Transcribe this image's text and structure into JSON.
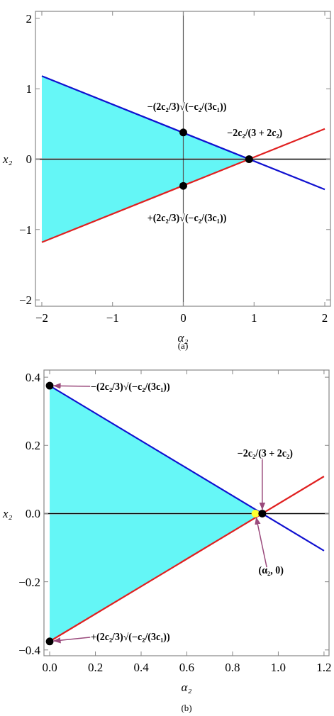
{
  "chart_data": [
    {
      "type": "line",
      "xlabel": "α₂",
      "ylabel": "x₂",
      "xlim": [
        -2.09,
        2.08
      ],
      "ylim": [
        -2.09,
        2.1
      ],
      "xticks": [
        {
          "value": -2,
          "label": "−2"
        },
        {
          "value": -1,
          "label": "−1"
        },
        0,
        1,
        2
      ],
      "yticks": [
        {
          "value": -2,
          "label": "−2"
        },
        {
          "value": -1,
          "label": "−1"
        },
        0,
        1,
        2
      ],
      "ref_lines": [
        {
          "axis": "x",
          "value": 0,
          "color": "#555555"
        },
        {
          "axis": "y",
          "value": 0,
          "color": "#000000"
        }
      ],
      "series": [
        {
          "type": "area",
          "color": "#66f7f7",
          "x": [
            -2,
            0.93
          ],
          "values": [
            1.18,
            0
          ]
        },
        {
          "type": "area",
          "color": "#64f6f6",
          "x": [
            -2,
            0.93
          ],
          "values": [
            -1.18,
            0
          ]
        },
        {
          "type": "line",
          "color": "#1010d0",
          "x": [
            -2,
            2
          ],
          "values": [
            1.18,
            -0.43
          ]
        },
        {
          "type": "line",
          "color": "#e02020",
          "x": [
            -2,
            2
          ],
          "values": [
            -1.18,
            0.43
          ]
        },
        {
          "type": "scatter",
          "color": "#000000",
          "marker": "circle",
          "x": [
            0,
            0,
            0.93
          ],
          "values": [
            0.38,
            -0.38,
            0
          ]
        }
      ],
      "annotations": [
        {
          "text": "−(2c₂/3)√(−c₂/(3c₁))",
          "x": 0,
          "y": 0.38
        },
        {
          "text": "−2c₂/(3 + 2c₂)",
          "x": 0.93,
          "y": 0
        },
        {
          "text": "+(2c₂/3)√(−c₂/(3c₁))",
          "x": 0,
          "y": -0.38
        },
        "(a)"
      ]
    },
    {
      "type": "line",
      "xlabel": "α₂",
      "ylabel": "x₂",
      "xlim": [
        -0.025,
        1.222
      ],
      "ylim": [
        -0.417,
        0.421
      ],
      "xticks": [
        {
          "value": 0,
          "label": "0.0"
        },
        {
          "value": 0.2,
          "label": "0.2"
        },
        {
          "value": 0.4,
          "label": "0.4"
        },
        {
          "value": 0.6,
          "label": "0.6"
        },
        {
          "value": 0.8,
          "label": "0.8"
        },
        {
          "value": 1,
          "label": "1.0"
        },
        {
          "value": 1.2,
          "label": "1.2"
        }
      ],
      "yticks": [
        {
          "value": -0.4,
          "label": "−0.4"
        },
        {
          "value": -0.2,
          "label": "−0.2"
        },
        {
          "value": 0,
          "label": "0.0"
        },
        {
          "value": 0.2,
          "label": "0.2"
        },
        {
          "value": 0.4,
          "label": "0.4"
        }
      ],
      "ref_lines": [
        {
          "axis": "y",
          "value": 0,
          "color": "#000000"
        }
      ],
      "series": [
        {
          "type": "area",
          "color": "#66f7f7",
          "x": [
            0,
            0.93
          ],
          "values": [
            0.375,
            0
          ]
        },
        {
          "type": "area",
          "color": "#64f6f6",
          "x": [
            0,
            0.93
          ],
          "values": [
            -0.375,
            0
          ]
        },
        {
          "type": "line",
          "color": "#1010d0",
          "x": [
            0,
            1.2
          ],
          "values": [
            0.375,
            -0.109
          ]
        },
        {
          "type": "line",
          "color": "#e02020",
          "x": [
            0,
            1.2
          ],
          "values": [
            -0.375,
            0.109
          ]
        },
        {
          "type": "scatter",
          "color": "#ffff30",
          "marker": "circle",
          "x": [
            0.9
          ],
          "values": [
            0
          ]
        },
        {
          "type": "scatter",
          "color": "#000000",
          "marker": "circle",
          "x": [
            0,
            0,
            0.93
          ],
          "values": [
            0.375,
            -0.375,
            0
          ]
        }
      ],
      "annotations": [
        {
          "text": "−(2c₂/3)√(−c₂/(3c₁))",
          "x": 0,
          "y": 0.375
        },
        {
          "text": "−2c₂/(3 + 2c₂)",
          "x": 0.93,
          "y": 0
        },
        {
          "text": "+(2c₂/3)√(−c₂/(3c₁))",
          "x": 0,
          "y": -0.375
        },
        {
          "text": "(α₂, 0)",
          "x": 0.9,
          "y": 0
        },
        "(b)"
      ]
    }
  ]
}
